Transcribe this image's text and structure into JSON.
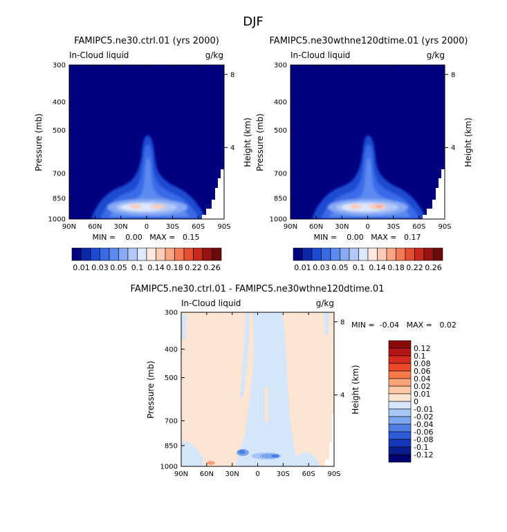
{
  "figure_title": "DJF",
  "colors": {
    "ocean": "#000080",
    "diff_bg": "#fde5d3",
    "diff_blue": "#d5e6fb"
  },
  "chart_data": [
    {
      "type": "heatmap",
      "title": "FAMIPC5.ne30.ctrl.01 (yrs 2000)",
      "left_label": "In-Cloud liquid",
      "right_label": "g/kg",
      "ylabel": "Pressure (mb)",
      "ylabel2": "Height (km)",
      "x_ticks": [
        "90N",
        "60N",
        "30N",
        "0",
        "30S",
        "60S",
        "90S"
      ],
      "y_ticks": [
        300,
        400,
        500,
        700,
        850,
        1000
      ],
      "height_ticks": [
        8,
        4
      ],
      "min_max": "MIN =    0.00   MAX =   0.15",
      "colorbar_labels": [
        "0.01",
        "0.03",
        "0.05",
        "0.1",
        "0.14",
        "0.18",
        "0.22",
        "0.26"
      ],
      "colorbar_colors": [
        "#000080",
        "#0a2aa6",
        "#1e4bd2",
        "#3a6ae8",
        "#5c8af0",
        "#86a9f4",
        "#b4c9f8",
        "#dde8fc",
        "#fde8de",
        "#fccbb4",
        "#f9a483",
        "#f37a57",
        "#e54e33",
        "#c72a1d",
        "#9a120f",
        "#6b0a06"
      ]
    },
    {
      "type": "heatmap",
      "title": "FAMIPC5.ne30wthne120dtime.01 (yrs 2000)",
      "left_label": "In-Cloud liquid",
      "right_label": "g/kg",
      "ylabel": "Pressure (mb)",
      "ylabel2": "Height (km)",
      "x_ticks": [
        "90N",
        "60N",
        "30N",
        "0",
        "30S",
        "60S",
        "90S"
      ],
      "y_ticks": [
        300,
        400,
        500,
        700,
        850,
        1000
      ],
      "height_ticks": [
        8,
        4
      ],
      "min_max": "MIN =    0.00   MAX =   0.17",
      "colorbar_labels": [
        "0.01",
        "0.03",
        "0.05",
        "0.1",
        "0.14",
        "0.18",
        "0.22",
        "0.26"
      ],
      "colorbar_colors": [
        "#000080",
        "#0a2aa6",
        "#1e4bd2",
        "#3a6ae8",
        "#5c8af0",
        "#86a9f4",
        "#b4c9f8",
        "#dde8fc",
        "#fde8de",
        "#fccbb4",
        "#f9a483",
        "#f37a57",
        "#e54e33",
        "#c72a1d",
        "#9a120f",
        "#6b0a06"
      ]
    },
    {
      "type": "heatmap",
      "title": "FAMIPC5.ne30.ctrl.01 - FAMIPC5.ne30wthne120dtime.01",
      "left_label": "In-Cloud liquid",
      "right_label": "g/kg",
      "ylabel": "Pressure (mb)",
      "ylabel2": "Height (km)",
      "x_ticks": [
        "90N",
        "60N",
        "30N",
        "0",
        "30S",
        "60S",
        "90S"
      ],
      "y_ticks": [
        300,
        400,
        500,
        700,
        850,
        1000
      ],
      "height_ticks": [
        8,
        4
      ],
      "min_max": "MIN =  -0.04   MAX =   0.02",
      "colorbar_labels": [
        "0.12",
        "0.1",
        "0.08",
        "0.06",
        "0.04",
        "0.02",
        "0.01",
        "0",
        "-0.01",
        "-0.02",
        "-0.04",
        "-0.06",
        "-0.08",
        "-0.1",
        "-0.12"
      ],
      "colorbar_colors": [
        "#8b0a0a",
        "#b51414",
        "#d52b1e",
        "#ec4a2a",
        "#f77a4d",
        "#fba37a",
        "#fcc9a6",
        "#fde5d3",
        "#d5e6fb",
        "#a9c7f4",
        "#7ea6ee",
        "#4f7fe6",
        "#2c5ad8",
        "#1638b8",
        "#0a1e8e",
        "#000070"
      ]
    }
  ]
}
